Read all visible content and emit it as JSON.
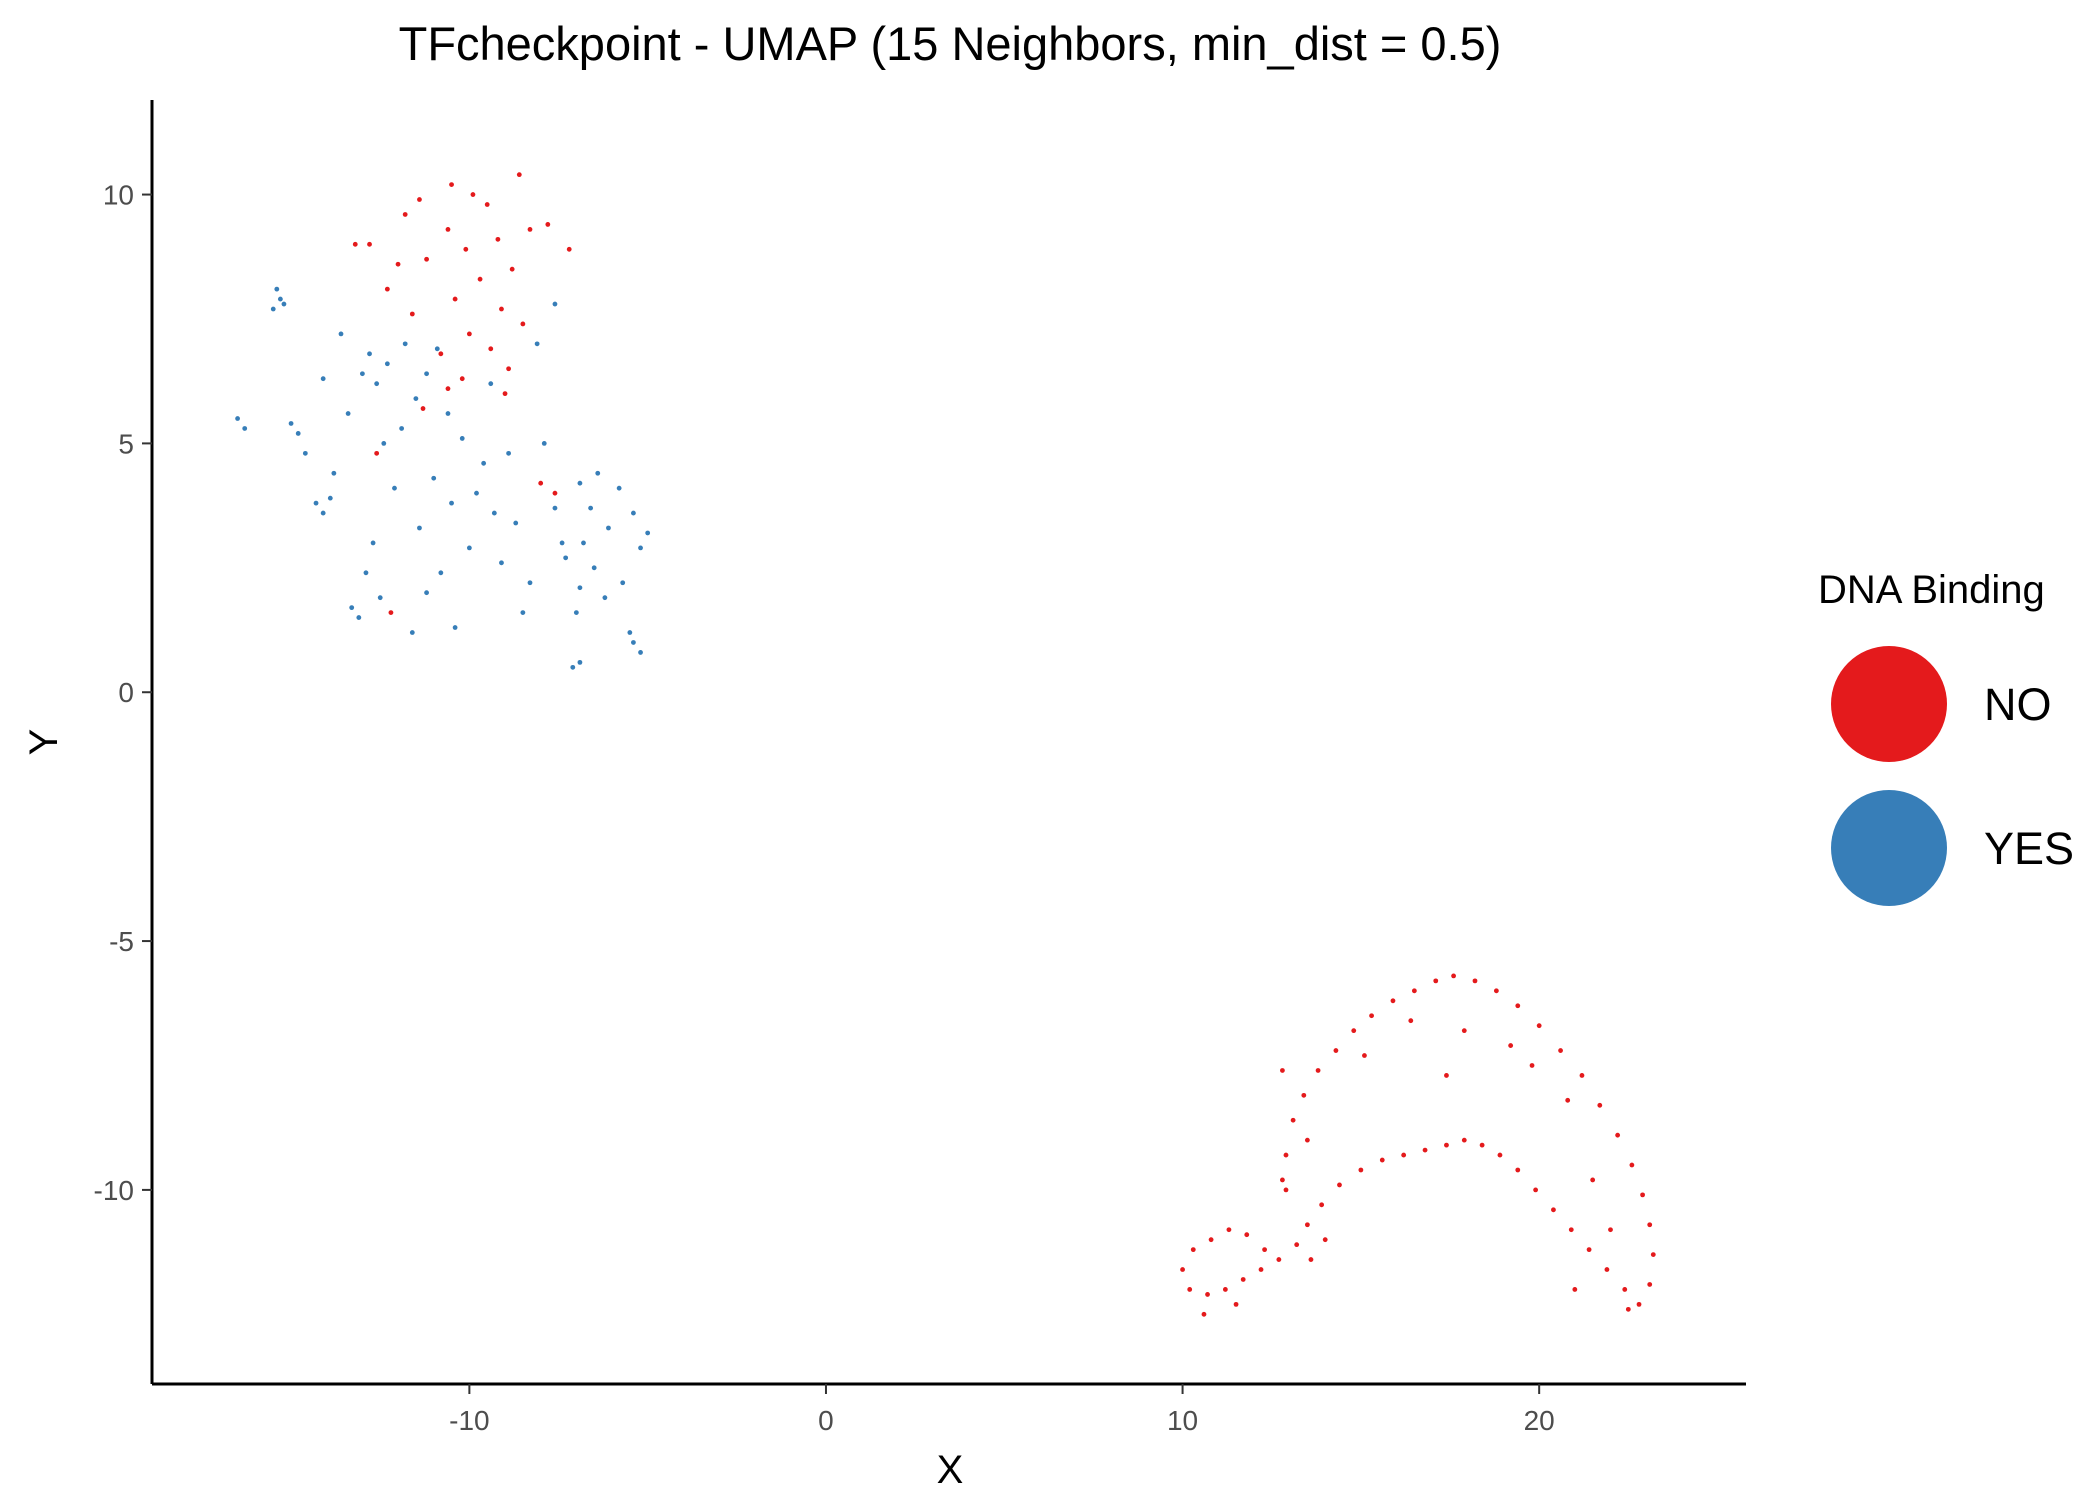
{
  "chart_data": {
    "type": "scatter",
    "title": "TFcheckpoint - UMAP (15 Neighbors, min_dist = 0.5)",
    "xlabel": "X",
    "ylabel": "Y",
    "xlim": [
      -18.9,
      25.8
    ],
    "ylim": [
      -13.9,
      11.9
    ],
    "xticks": [
      -10,
      0,
      10,
      20
    ],
    "xtick_labels": [
      "-10",
      "0",
      "10",
      "20"
    ],
    "yticks": [
      -10,
      -5,
      0,
      5,
      10
    ],
    "ytick_labels": [
      "-10",
      "-5",
      "0",
      "5",
      "10"
    ],
    "grid": false,
    "legend": {
      "title": "DNA Binding",
      "position": "right",
      "entries": [
        {
          "label": "NO",
          "color": "#E41A1C"
        },
        {
          "label": "YES",
          "color": "#377EB8"
        }
      ]
    },
    "series": [
      {
        "name": "NO",
        "color": "#E41A1C",
        "points": [
          [
            -10.5,
            10.2
          ],
          [
            -9.5,
            9.8
          ],
          [
            -11.8,
            9.6
          ],
          [
            -8.6,
            10.4
          ],
          [
            -9.2,
            9.1
          ],
          [
            -10.1,
            8.9
          ],
          [
            -11.2,
            8.7
          ],
          [
            -8.8,
            8.5
          ],
          [
            -9.7,
            8.3
          ],
          [
            -12.3,
            8.1
          ],
          [
            -10.4,
            7.9
          ],
          [
            -9.1,
            7.7
          ],
          [
            -11.6,
            7.6
          ],
          [
            -8.5,
            7.4
          ],
          [
            -10.0,
            7.2
          ],
          [
            -9.4,
            6.9
          ],
          [
            -10.8,
            6.8
          ],
          [
            -8.9,
            6.5
          ],
          [
            -12.8,
            9.0
          ],
          [
            -13.2,
            9.0
          ],
          [
            -7.2,
            8.9
          ],
          [
            -7.8,
            9.4
          ],
          [
            -8.3,
            9.3
          ],
          [
            -9.9,
            10.0
          ],
          [
            -10.6,
            9.3
          ],
          [
            -11.4,
            9.9
          ],
          [
            -12.0,
            8.6
          ],
          [
            -9.0,
            6.0
          ],
          [
            -10.2,
            6.3
          ],
          [
            -11.3,
            5.7
          ],
          [
            -8.0,
            4.2
          ],
          [
            -7.6,
            4.0
          ],
          [
            -12.6,
            4.8
          ],
          [
            -12.2,
            1.6
          ],
          [
            -10.6,
            6.1
          ],
          [
            12.9,
            -10.0
          ],
          [
            12.8,
            -9.8
          ],
          [
            12.9,
            -9.3
          ],
          [
            13.1,
            -8.6
          ],
          [
            13.4,
            -8.1
          ],
          [
            13.8,
            -7.6
          ],
          [
            14.3,
            -7.2
          ],
          [
            14.8,
            -6.8
          ],
          [
            15.3,
            -6.5
          ],
          [
            15.9,
            -6.2
          ],
          [
            16.5,
            -6.0
          ],
          [
            17.1,
            -5.8
          ],
          [
            17.6,
            -5.7
          ],
          [
            18.2,
            -5.8
          ],
          [
            18.8,
            -6.0
          ],
          [
            19.4,
            -6.3
          ],
          [
            20.0,
            -6.7
          ],
          [
            20.6,
            -7.2
          ],
          [
            21.2,
            -7.7
          ],
          [
            21.7,
            -8.3
          ],
          [
            22.2,
            -8.9
          ],
          [
            22.6,
            -9.5
          ],
          [
            22.9,
            -10.1
          ],
          [
            23.1,
            -10.7
          ],
          [
            23.2,
            -11.3
          ],
          [
            23.1,
            -11.9
          ],
          [
            22.8,
            -12.3
          ],
          [
            22.4,
            -12.0
          ],
          [
            21.9,
            -11.6
          ],
          [
            21.4,
            -11.2
          ],
          [
            20.9,
            -10.8
          ],
          [
            20.4,
            -10.4
          ],
          [
            19.9,
            -10.0
          ],
          [
            19.4,
            -9.6
          ],
          [
            18.9,
            -9.3
          ],
          [
            18.4,
            -9.1
          ],
          [
            17.9,
            -9.0
          ],
          [
            17.4,
            -9.1
          ],
          [
            16.8,
            -9.2
          ],
          [
            16.2,
            -9.3
          ],
          [
            15.6,
            -9.4
          ],
          [
            15.0,
            -9.6
          ],
          [
            14.4,
            -9.9
          ],
          [
            13.9,
            -10.3
          ],
          [
            13.5,
            -10.7
          ],
          [
            13.2,
            -11.1
          ],
          [
            12.7,
            -11.4
          ],
          [
            12.2,
            -11.6
          ],
          [
            11.7,
            -11.8
          ],
          [
            11.2,
            -12.0
          ],
          [
            10.7,
            -12.1
          ],
          [
            10.2,
            -12.0
          ],
          [
            10.0,
            -11.6
          ],
          [
            10.3,
            -11.2
          ],
          [
            10.8,
            -11.0
          ],
          [
            11.3,
            -10.8
          ],
          [
            11.8,
            -10.9
          ],
          [
            12.3,
            -11.2
          ],
          [
            11.5,
            -12.3
          ],
          [
            10.6,
            -12.5
          ],
          [
            13.6,
            -11.4
          ],
          [
            14.0,
            -11.0
          ],
          [
            22.0,
            -10.8
          ],
          [
            21.5,
            -9.8
          ],
          [
            20.8,
            -8.2
          ],
          [
            19.2,
            -7.1
          ],
          [
            16.4,
            -6.6
          ],
          [
            15.1,
            -7.3
          ],
          [
            13.5,
            -9.0
          ],
          [
            21.0,
            -12.0
          ],
          [
            22.5,
            -12.4
          ],
          [
            12.8,
            -7.6
          ],
          [
            17.4,
            -7.7
          ],
          [
            17.9,
            -6.8
          ],
          [
            19.8,
            -7.5
          ]
        ]
      },
      {
        "name": "YES",
        "color": "#377EB8",
        "points": [
          [
            -15.4,
            8.1
          ],
          [
            -15.3,
            7.9
          ],
          [
            -15.2,
            7.8
          ],
          [
            -15.5,
            7.7
          ],
          [
            -16.5,
            5.5
          ],
          [
            -16.3,
            5.3
          ],
          [
            -15.0,
            5.4
          ],
          [
            -14.8,
            5.2
          ],
          [
            -14.3,
            3.8
          ],
          [
            -14.1,
            3.6
          ],
          [
            -13.9,
            3.9
          ],
          [
            -13.3,
            1.7
          ],
          [
            -13.1,
            1.5
          ],
          [
            -12.5,
            1.9
          ],
          [
            -10.4,
            1.3
          ],
          [
            -7.1,
            0.5
          ],
          [
            -6.9,
            0.6
          ],
          [
            -5.4,
            1.0
          ],
          [
            -5.2,
            0.8
          ],
          [
            -5.5,
            1.2
          ],
          [
            -12.8,
            6.8
          ],
          [
            -12.3,
            6.6
          ],
          [
            -11.8,
            7.0
          ],
          [
            -11.2,
            6.4
          ],
          [
            -10.9,
            6.9
          ],
          [
            -12.6,
            6.2
          ],
          [
            -11.5,
            5.9
          ],
          [
            -13.0,
            6.4
          ],
          [
            -10.6,
            5.6
          ],
          [
            -11.9,
            5.3
          ],
          [
            -12.4,
            5.0
          ],
          [
            -10.2,
            5.1
          ],
          [
            -9.6,
            4.6
          ],
          [
            -11.0,
            4.3
          ],
          [
            -12.1,
            4.1
          ],
          [
            -10.5,
            3.8
          ],
          [
            -9.3,
            3.6
          ],
          [
            -11.4,
            3.3
          ],
          [
            -8.7,
            3.4
          ],
          [
            -10.0,
            2.9
          ],
          [
            -12.7,
            3.0
          ],
          [
            -9.1,
            2.6
          ],
          [
            -8.3,
            2.2
          ],
          [
            -10.8,
            2.4
          ],
          [
            -7.4,
            3.0
          ],
          [
            -6.9,
            4.2
          ],
          [
            -6.4,
            4.4
          ],
          [
            -5.8,
            4.1
          ],
          [
            -5.4,
            3.6
          ],
          [
            -6.1,
            3.3
          ],
          [
            -6.8,
            3.0
          ],
          [
            -7.3,
            2.7
          ],
          [
            -6.5,
            2.5
          ],
          [
            -5.7,
            2.2
          ],
          [
            -6.2,
            1.9
          ],
          [
            -5.2,
            2.9
          ],
          [
            -6.9,
            2.1
          ],
          [
            -7.6,
            3.7
          ],
          [
            -5.0,
            3.2
          ],
          [
            -6.6,
            3.7
          ],
          [
            -13.6,
            7.2
          ],
          [
            -14.1,
            6.3
          ],
          [
            -14.6,
            4.8
          ],
          [
            -13.4,
            5.6
          ],
          [
            -9.8,
            4.0
          ],
          [
            -8.9,
            4.8
          ],
          [
            -7.9,
            5.0
          ],
          [
            -7.6,
            7.8
          ],
          [
            -8.1,
            7.0
          ],
          [
            -9.4,
            6.2
          ],
          [
            -13.8,
            4.4
          ],
          [
            -12.9,
            2.4
          ],
          [
            -11.2,
            2.0
          ],
          [
            -8.5,
            1.6
          ],
          [
            -7.0,
            1.6
          ],
          [
            -11.6,
            1.2
          ]
        ]
      }
    ]
  }
}
